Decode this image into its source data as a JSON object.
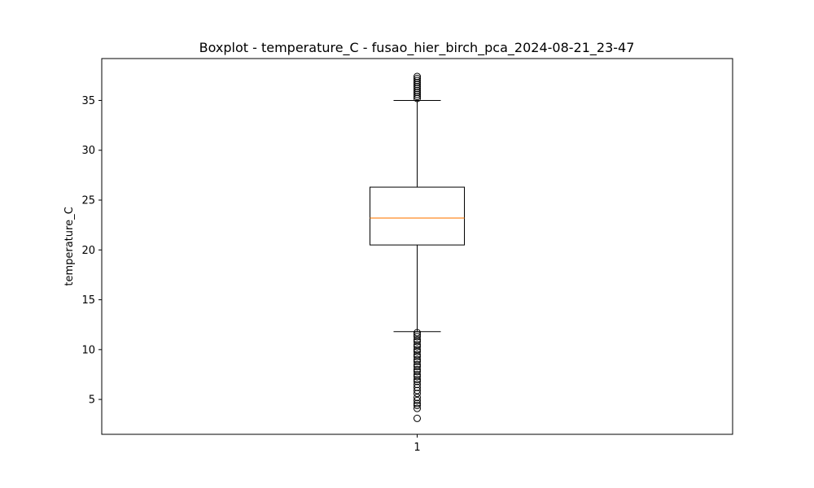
{
  "chart_data": {
    "type": "box",
    "title": "Boxplot - temperature_C - fusao_hier_birch_pca_2024-08-21_23-47",
    "xlabel": "",
    "ylabel": "temperature_C",
    "categories": [
      "1"
    ],
    "ylim": [
      1.5,
      39.2
    ],
    "yticks": [
      5,
      10,
      15,
      20,
      25,
      30,
      35
    ],
    "grid": false,
    "boxes": [
      {
        "category": "1",
        "whisker_low": 11.8,
        "q1": 20.5,
        "median": 23.2,
        "q3": 26.3,
        "whisker_high": 35.0,
        "outliers_low": [
          3.1,
          4.1,
          4.4,
          4.6,
          4.9,
          5.2,
          5.6,
          5.9,
          6.2,
          6.5,
          6.8,
          7.0,
          7.3,
          7.5,
          7.8,
          8.0,
          8.3,
          8.5,
          8.8,
          9.0,
          9.3,
          9.5,
          9.8,
          10.0,
          10.3,
          10.5,
          10.8,
          11.0,
          11.3,
          11.5,
          11.7
        ],
        "outliers_high": [
          35.2,
          35.4,
          35.6,
          35.8,
          36.0,
          36.2,
          36.4,
          36.6,
          36.8,
          37.0,
          37.2,
          37.4
        ]
      }
    ],
    "colors": {
      "box": "#000000",
      "median": "#ff7f0e",
      "outlier_edge": "#000000"
    }
  }
}
